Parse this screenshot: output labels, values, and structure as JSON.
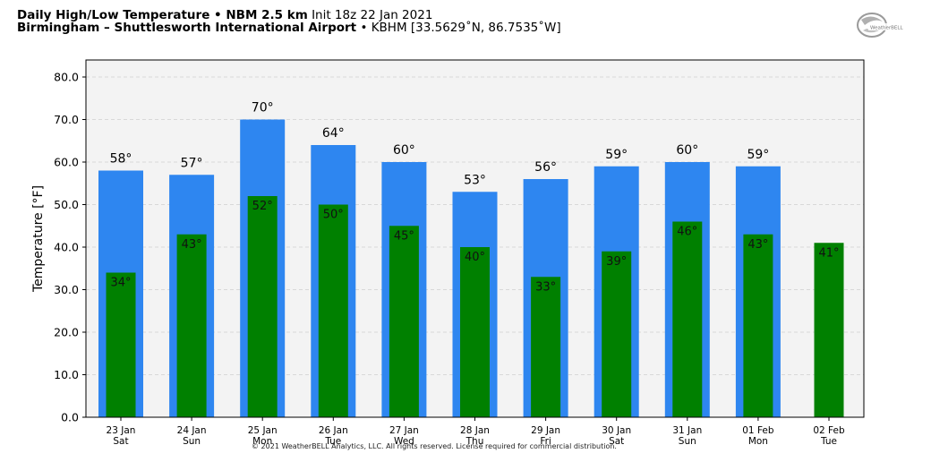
{
  "header": {
    "title_bold": "Daily High/Low Temperature • NBM 2.5 km",
    "init": "Init 18z 22 Jan 2021",
    "location_bold": "Birmingham – Shuttlesworth International Airport",
    "station": "• KBHM [33.5629˚N, 86.7535˚W]"
  },
  "logo_text": "WeatherBELL",
  "footer": "© 2021 WeatherBELL Analytics, LLC. All rights reserved. License required for commercial distribution.",
  "colors": {
    "high": "#2e86f0",
    "low": "#008000",
    "plot_bg": "#f3f3f3"
  },
  "chart_data": {
    "type": "bar",
    "categories": [
      [
        "23 Jan",
        "Sat"
      ],
      [
        "24 Jan",
        "Sun"
      ],
      [
        "25 Jan",
        "Mon"
      ],
      [
        "26 Jan",
        "Tue"
      ],
      [
        "27 Jan",
        "Wed"
      ],
      [
        "28 Jan",
        "Thu"
      ],
      [
        "29 Jan",
        "Fri"
      ],
      [
        "30 Jan",
        "Sat"
      ],
      [
        "31 Jan",
        "Sun"
      ],
      [
        "01 Feb",
        "Mon"
      ],
      [
        "02 Feb",
        "Tue"
      ]
    ],
    "series": [
      {
        "values": [
          58,
          57,
          70,
          64,
          60,
          53,
          56,
          59,
          60,
          59,
          null
        ]
      },
      {
        "values": [
          34,
          43,
          52,
          50,
          45,
          40,
          33,
          39,
          46,
          43,
          41
        ]
      }
    ],
    "ylabel": "Temperature [°F]",
    "ylim": [
      0,
      84
    ],
    "yticks": [
      "0.0",
      "10.0",
      "20.0",
      "30.0",
      "40.0",
      "50.0",
      "60.0",
      "70.0",
      "80.0"
    ],
    "grid": true
  }
}
